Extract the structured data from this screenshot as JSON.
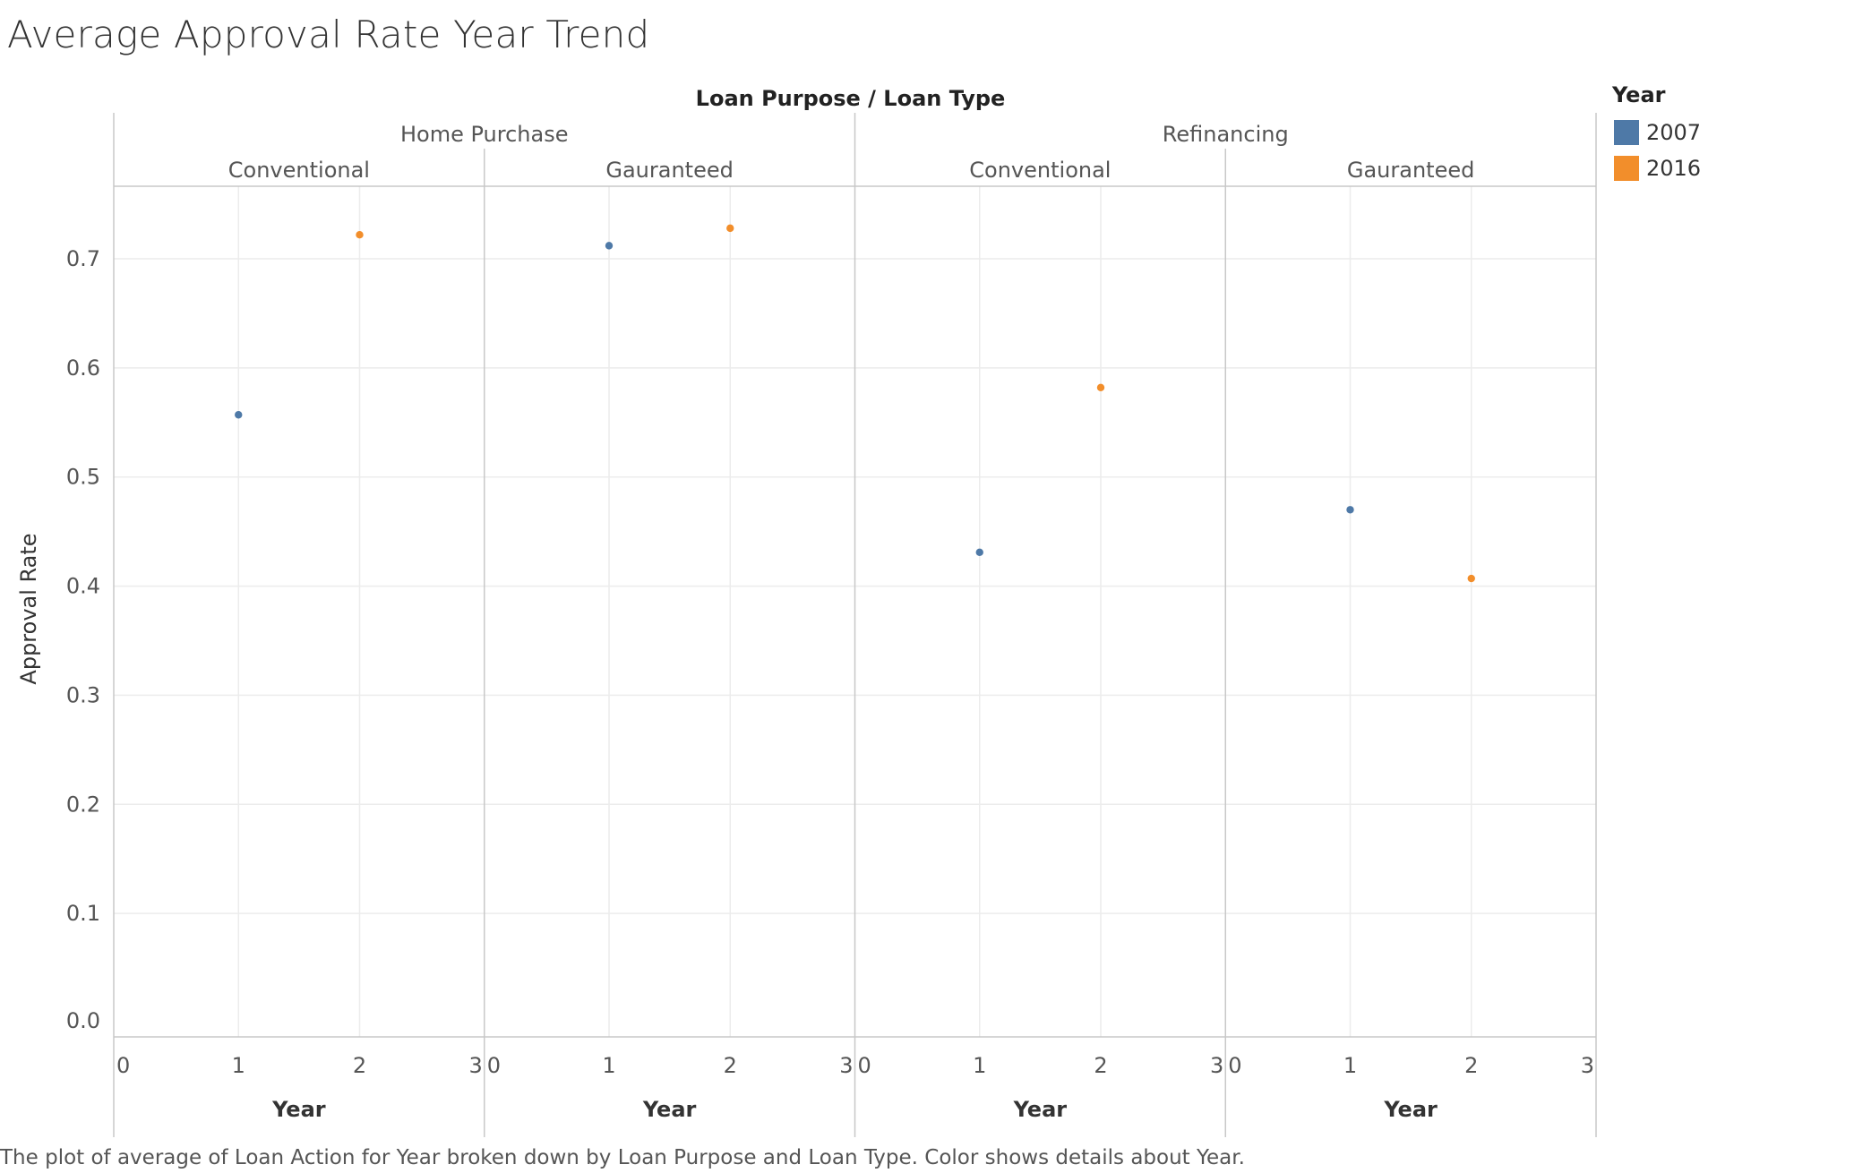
{
  "chart_title": "Average Approval Rate Year Trend",
  "caption": "The plot of average of Loan Action for Year broken down by Loan Purpose and Loan Type.  Color shows details about Year.",
  "header_label": "Loan Purpose  /  Loan Type",
  "legend": {
    "title": "Year",
    "items": [
      {
        "label": "2007",
        "color": "#4e79a7"
      },
      {
        "label": "2016",
        "color": "#f28e2b"
      }
    ]
  },
  "chart_data": {
    "type": "scatter",
    "title": "Average Approval Rate Year Trend",
    "ylabel": "Approval Rate",
    "xlabel": "Year",
    "ylim": [
      0.0,
      0.7
    ],
    "yticks": [
      "0.0",
      "0.1",
      "0.2",
      "0.3",
      "0.4",
      "0.5",
      "0.6",
      "0.7"
    ],
    "xlim": [
      0,
      3
    ],
    "xticks": [
      "0",
      "1",
      "2",
      "3"
    ],
    "groups": [
      "Home Purchase",
      "Refinancing"
    ],
    "panels": [
      {
        "purpose": "Home Purchase",
        "type": "Conventional",
        "points": [
          {
            "year": "2007",
            "x": 1,
            "y": 0.557
          },
          {
            "year": "2016",
            "x": 2,
            "y": 0.722
          }
        ]
      },
      {
        "purpose": "Home Purchase",
        "type": "Gauranteed",
        "points": [
          {
            "year": "2007",
            "x": 1,
            "y": 0.712
          },
          {
            "year": "2016",
            "x": 2,
            "y": 0.728
          }
        ]
      },
      {
        "purpose": "Refinancing",
        "type": "Conventional",
        "points": [
          {
            "year": "2007",
            "x": 1,
            "y": 0.431
          },
          {
            "year": "2016",
            "x": 2,
            "y": 0.582
          }
        ]
      },
      {
        "purpose": "Refinancing",
        "type": "Gauranteed",
        "points": [
          {
            "year": "2007",
            "x": 1,
            "y": 0.47
          },
          {
            "year": "2016",
            "x": 2,
            "y": 0.407
          }
        ]
      }
    ],
    "grid": true,
    "legend_position": "top-right"
  }
}
